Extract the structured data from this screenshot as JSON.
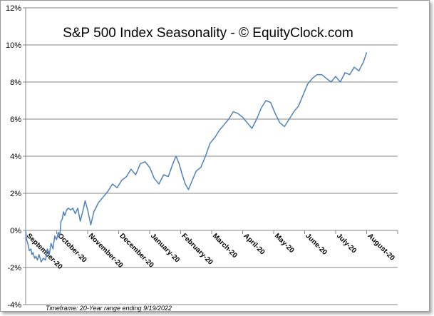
{
  "chart_data": {
    "type": "line",
    "title": "S&P 500 Index Seasonality - © EquityClock.com",
    "xlabel": "",
    "ylabel": "",
    "ylim": [
      -4,
      12
    ],
    "y_ticks": [
      -4,
      -2,
      0,
      2,
      4,
      6,
      8,
      10,
      12
    ],
    "y_tick_labels": [
      "-4%",
      "-2%",
      "0%",
      "2%",
      "4%",
      "6%",
      "8%",
      "10%",
      "12%"
    ],
    "categories": [
      "September-20",
      "October-20",
      "November-20",
      "December-20",
      "January-20",
      "February-20",
      "March-20",
      "April-20",
      "May-20",
      "June-20",
      "July-20",
      "August-20"
    ],
    "grid": "horizontal",
    "footnote": "Timeframe: 20-Year range ending 9/19/2022",
    "series_color": "#4f81bd",
    "series": [
      {
        "name": "S&P 500 Seasonality",
        "x": [
          0,
          0.03,
          0.07,
          0.12,
          0.17,
          0.2,
          0.24,
          0.29,
          0.33,
          0.38,
          0.43,
          0.5,
          0.57,
          0.64,
          0.7,
          0.76,
          0.82,
          0.88,
          0.94,
          1.0,
          1.05,
          1.1,
          1.14,
          1.18,
          1.22,
          1.26,
          1.32,
          1.38,
          1.45,
          1.52,
          1.6,
          1.68,
          1.76,
          1.84,
          1.92,
          2.0,
          2.1,
          2.2,
          2.35,
          2.5,
          2.65,
          2.8,
          2.95,
          3.1,
          3.25,
          3.4,
          3.55,
          3.7,
          3.85,
          4.0,
          4.15,
          4.3,
          4.45,
          4.6,
          4.75,
          4.85,
          4.95,
          5.05,
          5.15,
          5.25,
          5.35,
          5.5,
          5.65,
          5.8,
          5.95,
          6.1,
          6.25,
          6.4,
          6.55,
          6.7,
          6.85,
          7.0,
          7.15,
          7.3,
          7.45,
          7.6,
          7.75,
          7.9,
          8.05,
          8.2,
          8.35,
          8.5,
          8.65,
          8.8,
          8.95,
          9.1,
          9.25,
          9.4,
          9.55,
          9.7,
          9.85,
          10.0,
          10.15,
          10.3,
          10.45,
          10.6,
          10.75,
          10.9,
          11.0
        ],
        "values": [
          0.0,
          -0.5,
          -0.7,
          -1.1,
          -1.0,
          -1.3,
          -1.2,
          -1.5,
          -1.4,
          -1.6,
          -1.3,
          -1.7,
          -1.5,
          -1.6,
          -1.0,
          -1.3,
          -0.7,
          -1.0,
          -0.3,
          -0.5,
          -0.1,
          -0.3,
          0.5,
          0.6,
          1.0,
          0.8,
          1.1,
          1.2,
          1.1,
          1.2,
          0.9,
          1.2,
          0.5,
          1.0,
          1.6,
          1.1,
          0.3,
          1.0,
          1.5,
          1.8,
          2.1,
          2.5,
          2.3,
          2.7,
          2.9,
          3.3,
          3.0,
          3.6,
          3.7,
          3.4,
          2.8,
          2.5,
          3.0,
          2.9,
          3.6,
          4.0,
          3.6,
          3.0,
          2.5,
          2.2,
          2.6,
          3.2,
          3.4,
          4.0,
          4.7,
          5.0,
          5.4,
          5.7,
          6.0,
          6.4,
          6.3,
          6.1,
          5.8,
          5.5,
          6.0,
          6.6,
          7.0,
          6.9,
          6.3,
          5.8,
          5.6,
          6.0,
          6.4,
          6.7,
          7.3,
          7.9,
          8.2,
          8.4,
          8.4,
          8.2,
          8.0,
          8.3,
          8.0,
          8.5,
          8.4,
          8.8,
          8.6,
          9.1,
          9.6
        ]
      }
    ]
  }
}
